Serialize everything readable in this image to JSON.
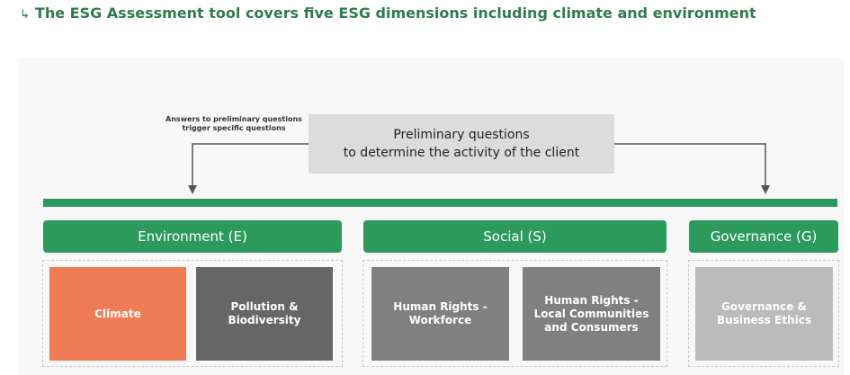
{
  "caption": "The ESG Assessment tool covers five ESG dimensions including climate and environment",
  "caption_icon": "arrow-down-right-icon",
  "note": "Answers to preliminary questions trigger specific questions",
  "preliminary": {
    "line1": "Preliminary questions",
    "line2": "to determine the activity of the client"
  },
  "categories": {
    "environment": "Environment (E)",
    "social": "Social (S)",
    "governance": "Governance (G)"
  },
  "dimensions": {
    "climate": "Climate",
    "pollution": "Pollution & Biodiversity",
    "hr_workforce": "Human Rights - Workforce",
    "hr_communities": "Human Rights - Local Communities and Consumers",
    "governance_ethics": "Governance & Business Ethics"
  },
  "colors": {
    "green": "#2d9a5d",
    "climate": "#ef7c57",
    "dark_gray": "#666666",
    "mid_gray": "#808080",
    "light_gray": "#bbbbbb",
    "prelim_bg": "#dcdcdc"
  }
}
